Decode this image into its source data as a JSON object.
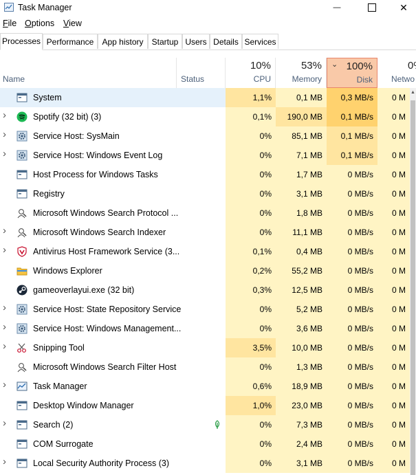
{
  "window": {
    "title": "Task Manager",
    "minimize_glyph": "—",
    "maximize_glyph": "☐",
    "close_glyph": "✕"
  },
  "menu": {
    "file": {
      "u": "F",
      "rest": "ile"
    },
    "options": {
      "u": "O",
      "rest": "ptions"
    },
    "view": {
      "u": "V",
      "rest": "iew"
    }
  },
  "tabs": [
    "Processes",
    "Performance",
    "App history",
    "Startup",
    "Users",
    "Details",
    "Services"
  ],
  "columns": {
    "name": "Name",
    "status": "Status",
    "cpu": {
      "pct": "10%",
      "label": "CPU"
    },
    "memory": {
      "pct": "53%",
      "label": "Memory"
    },
    "disk": {
      "pct": "100%",
      "label": "Disk"
    },
    "network": {
      "pct": "0%",
      "label": "Netwo"
    }
  },
  "colors": {
    "heat_low": "#fff4c4",
    "heat_mid": "#ffe5a0",
    "heat_high": "#ffd26e",
    "selected": "#e5f1fb",
    "disk_header": "#f9c9a8"
  },
  "processes": [
    {
      "name": "System",
      "icon": "window-icon",
      "expand": false,
      "selected": true,
      "cpu": "1,1%",
      "mem": "0,1 MB",
      "disk": "0,3 MB/s",
      "net": "0 M",
      "cpu_heat": 1,
      "mem_heat": 0,
      "disk_heat": 2
    },
    {
      "name": "Spotify (32 bit) (3)",
      "icon": "spotify-icon",
      "expand": true,
      "cpu": "0,1%",
      "mem": "190,0 MB",
      "disk": "0,1 MB/s",
      "net": "0 M",
      "cpu_heat": 0,
      "mem_heat": 1,
      "disk_heat": 2
    },
    {
      "name": "Service Host: SysMain",
      "icon": "gear-icon",
      "expand": true,
      "cpu": "0%",
      "mem": "85,1 MB",
      "disk": "0,1 MB/s",
      "net": "0 M",
      "cpu_heat": 0,
      "mem_heat": 0,
      "disk_heat": 1
    },
    {
      "name": "Service Host: Windows Event Log",
      "icon": "gear-icon",
      "expand": true,
      "cpu": "0%",
      "mem": "7,1 MB",
      "disk": "0,1 MB/s",
      "net": "0 M",
      "cpu_heat": 0,
      "mem_heat": 0,
      "disk_heat": 1
    },
    {
      "name": "Host Process for Windows Tasks",
      "icon": "window-icon",
      "expand": false,
      "cpu": "0%",
      "mem": "1,7 MB",
      "disk": "0 MB/s",
      "net": "0 M",
      "cpu_heat": 0,
      "mem_heat": 0,
      "disk_heat": 0
    },
    {
      "name": "Registry",
      "icon": "window-icon",
      "expand": false,
      "cpu": "0%",
      "mem": "3,1 MB",
      "disk": "0 MB/s",
      "net": "0 M",
      "cpu_heat": 0,
      "mem_heat": 0,
      "disk_heat": 0
    },
    {
      "name": "Microsoft Windows Search Protocol ...",
      "icon": "user-search-icon",
      "expand": false,
      "cpu": "0%",
      "mem": "1,8 MB",
      "disk": "0 MB/s",
      "net": "0 M",
      "cpu_heat": 0,
      "mem_heat": 0,
      "disk_heat": 0
    },
    {
      "name": "Microsoft Windows Search Indexer",
      "icon": "user-search-icon",
      "expand": true,
      "cpu": "0%",
      "mem": "11,1 MB",
      "disk": "0 MB/s",
      "net": "0 M",
      "cpu_heat": 0,
      "mem_heat": 0,
      "disk_heat": 0
    },
    {
      "name": "Antivirus Host Framework Service (3...",
      "icon": "shield-icon",
      "expand": true,
      "cpu": "0,1%",
      "mem": "0,4 MB",
      "disk": "0 MB/s",
      "net": "0 M",
      "cpu_heat": 0,
      "mem_heat": 0,
      "disk_heat": 0
    },
    {
      "name": "Windows Explorer",
      "icon": "folder-icon",
      "expand": false,
      "cpu": "0,2%",
      "mem": "55,2 MB",
      "disk": "0 MB/s",
      "net": "0 M",
      "cpu_heat": 0,
      "mem_heat": 0,
      "disk_heat": 0
    },
    {
      "name": "gameoverlayui.exe (32 bit)",
      "icon": "steam-icon",
      "expand": false,
      "cpu": "0,3%",
      "mem": "12,5 MB",
      "disk": "0 MB/s",
      "net": "0 M",
      "cpu_heat": 0,
      "mem_heat": 0,
      "disk_heat": 0
    },
    {
      "name": "Service Host: State Repository Service",
      "icon": "gear-icon",
      "expand": true,
      "cpu": "0%",
      "mem": "5,2 MB",
      "disk": "0 MB/s",
      "net": "0 M",
      "cpu_heat": 0,
      "mem_heat": 0,
      "disk_heat": 0
    },
    {
      "name": "Service Host: Windows Management...",
      "icon": "gear-icon",
      "expand": true,
      "cpu": "0%",
      "mem": "3,6 MB",
      "disk": "0 MB/s",
      "net": "0 M",
      "cpu_heat": 0,
      "mem_heat": 0,
      "disk_heat": 0
    },
    {
      "name": "Snipping Tool",
      "icon": "scissors-icon",
      "expand": true,
      "cpu": "3,5%",
      "mem": "10,0 MB",
      "disk": "0 MB/s",
      "net": "0 M",
      "cpu_heat": 1,
      "mem_heat": 0,
      "disk_heat": 0
    },
    {
      "name": "Microsoft Windows Search Filter Host",
      "icon": "user-search-icon",
      "expand": false,
      "cpu": "0%",
      "mem": "1,3 MB",
      "disk": "0 MB/s",
      "net": "0 M",
      "cpu_heat": 0,
      "mem_heat": 0,
      "disk_heat": 0
    },
    {
      "name": "Task Manager",
      "icon": "task-manager-icon",
      "expand": true,
      "cpu": "0,6%",
      "mem": "18,9 MB",
      "disk": "0 MB/s",
      "net": "0 M",
      "cpu_heat": 0,
      "mem_heat": 0,
      "disk_heat": 0
    },
    {
      "name": "Desktop Window Manager",
      "icon": "window-icon",
      "expand": false,
      "cpu": "1,0%",
      "mem": "23,0 MB",
      "disk": "0 MB/s",
      "net": "0 M",
      "cpu_heat": 1,
      "mem_heat": 0,
      "disk_heat": 0
    },
    {
      "name": "Search (2)",
      "icon": "window-icon",
      "expand": true,
      "status_icon": "leaf-icon",
      "cpu": "0%",
      "mem": "7,3 MB",
      "disk": "0 MB/s",
      "net": "0 M",
      "cpu_heat": 0,
      "mem_heat": 0,
      "disk_heat": 0
    },
    {
      "name": "COM Surrogate",
      "icon": "window-icon",
      "expand": false,
      "cpu": "0%",
      "mem": "2,4 MB",
      "disk": "0 MB/s",
      "net": "0 M",
      "cpu_heat": 0,
      "mem_heat": 0,
      "disk_heat": 0
    },
    {
      "name": "Local Security Authority Process (3)",
      "icon": "window-icon",
      "expand": true,
      "cpu": "0%",
      "mem": "3,1 MB",
      "disk": "0 MB/s",
      "net": "0 M",
      "cpu_heat": 0,
      "mem_heat": 0,
      "disk_heat": 0
    }
  ]
}
